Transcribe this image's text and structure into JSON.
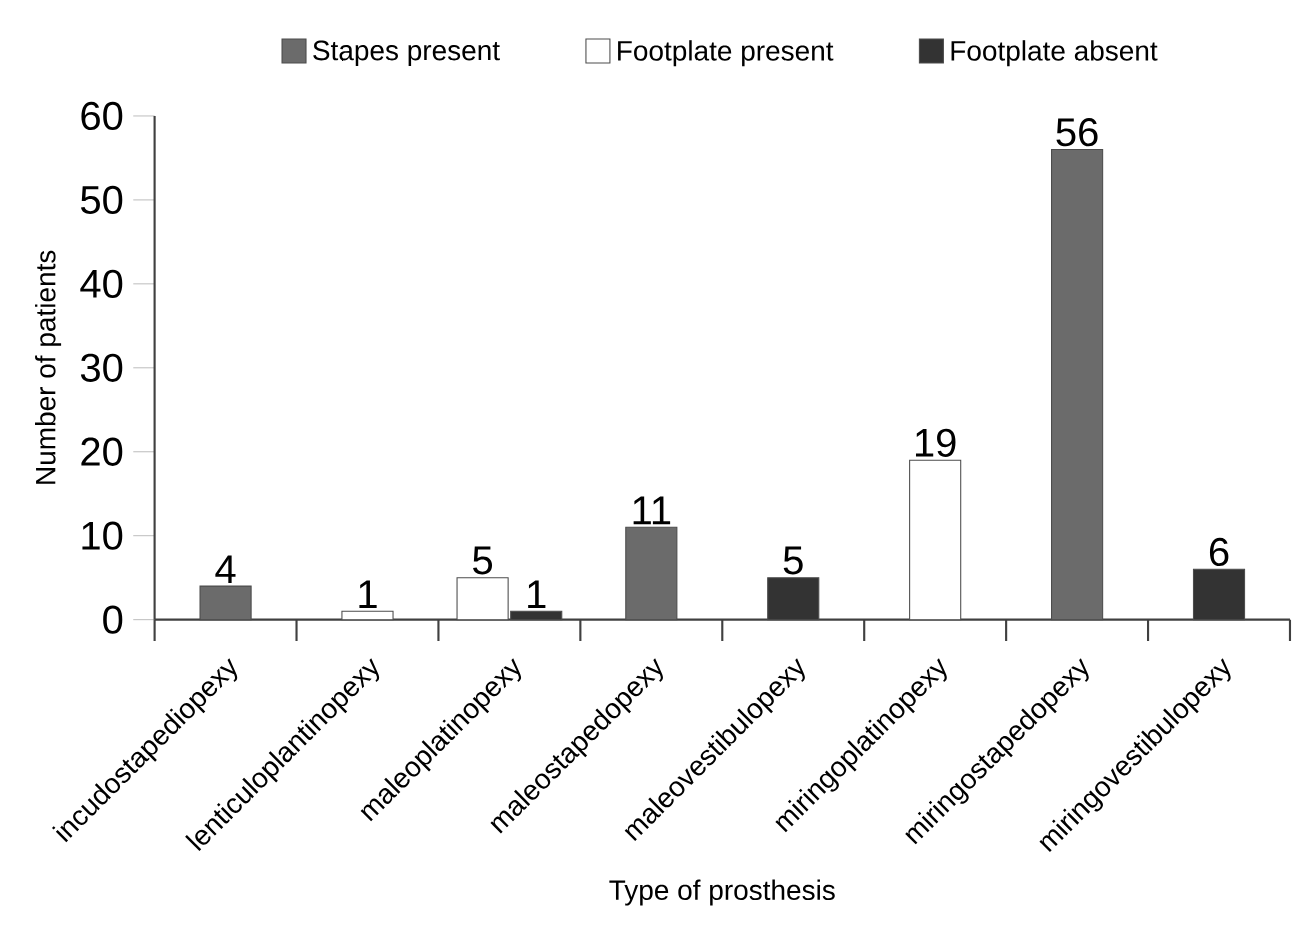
{
  "chart_data": {
    "type": "bar",
    "xlabel": "Type of prosthesis",
    "ylabel": "Number of patients",
    "categories": [
      "incudostapediopexy",
      "lenticuloplantinopexy",
      "maleoplatinopexy",
      "maleostapedopexy",
      "maleovestibulopexy",
      "miringoplatinopexy",
      "miringostapedopexy",
      "miringovestibulopexy"
    ],
    "series": [
      {
        "name": "Stapes present",
        "color": "#6b6b6b",
        "values": [
          4,
          null,
          null,
          11,
          null,
          null,
          56,
          null
        ]
      },
      {
        "name": "Footplate present",
        "color": "#ffffff",
        "values": [
          null,
          1,
          5,
          null,
          null,
          19,
          null,
          null
        ]
      },
      {
        "name": "Footplate absent",
        "color": "#333333",
        "values": [
          null,
          null,
          1,
          null,
          5,
          null,
          null,
          6
        ]
      }
    ],
    "ylim": [
      0,
      60
    ],
    "yticks": [
      0,
      10,
      20,
      30,
      40,
      50,
      60
    ],
    "data_labels": true,
    "legend": "top",
    "grid": false
  }
}
